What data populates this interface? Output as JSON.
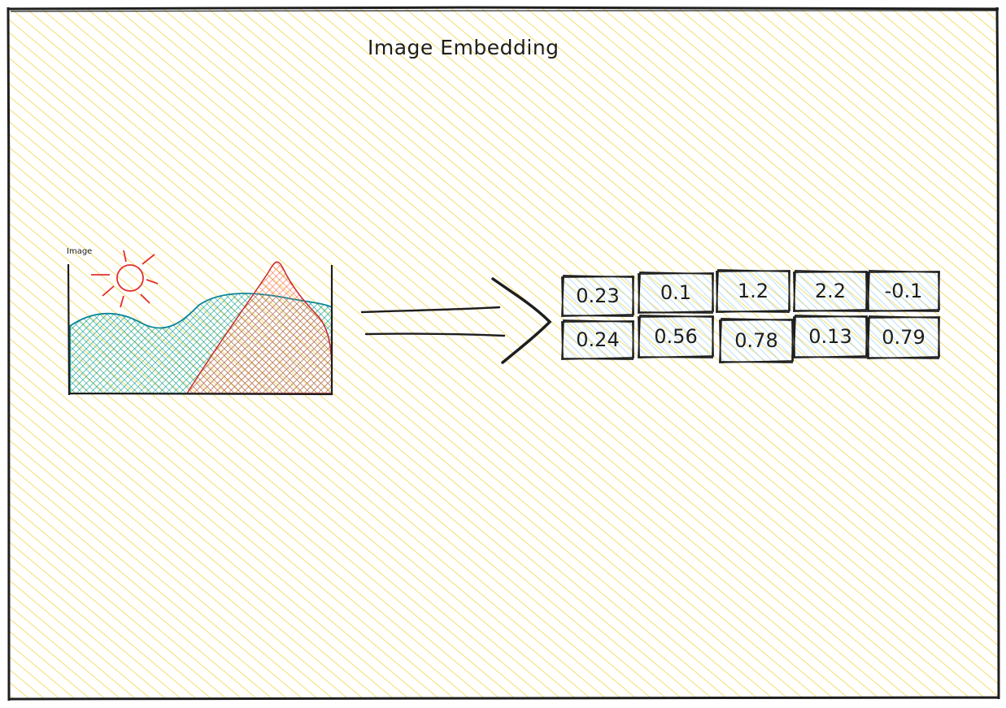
{
  "title": "Image Embedding",
  "image_label": "Image",
  "embedding": {
    "row1": [
      "0.23",
      "0.1",
      "1.2",
      "2.2",
      "-0.1"
    ],
    "row2": [
      "0.24",
      "0.56",
      "0.78",
      "0.13",
      "0.79"
    ]
  },
  "colors": {
    "background_hatch": "#f5e07a",
    "frame": "#1e1e1e",
    "cell_hatch": "#a5d8ff",
    "sun": "#e03131",
    "hill_fill": "#12b886",
    "hill_stroke": "#0c8599",
    "mountain_fill": "#ff8787",
    "mountain_stroke": "#e03131"
  },
  "icons": [
    "sun-icon",
    "landscape-icon",
    "arrow-icon"
  ]
}
